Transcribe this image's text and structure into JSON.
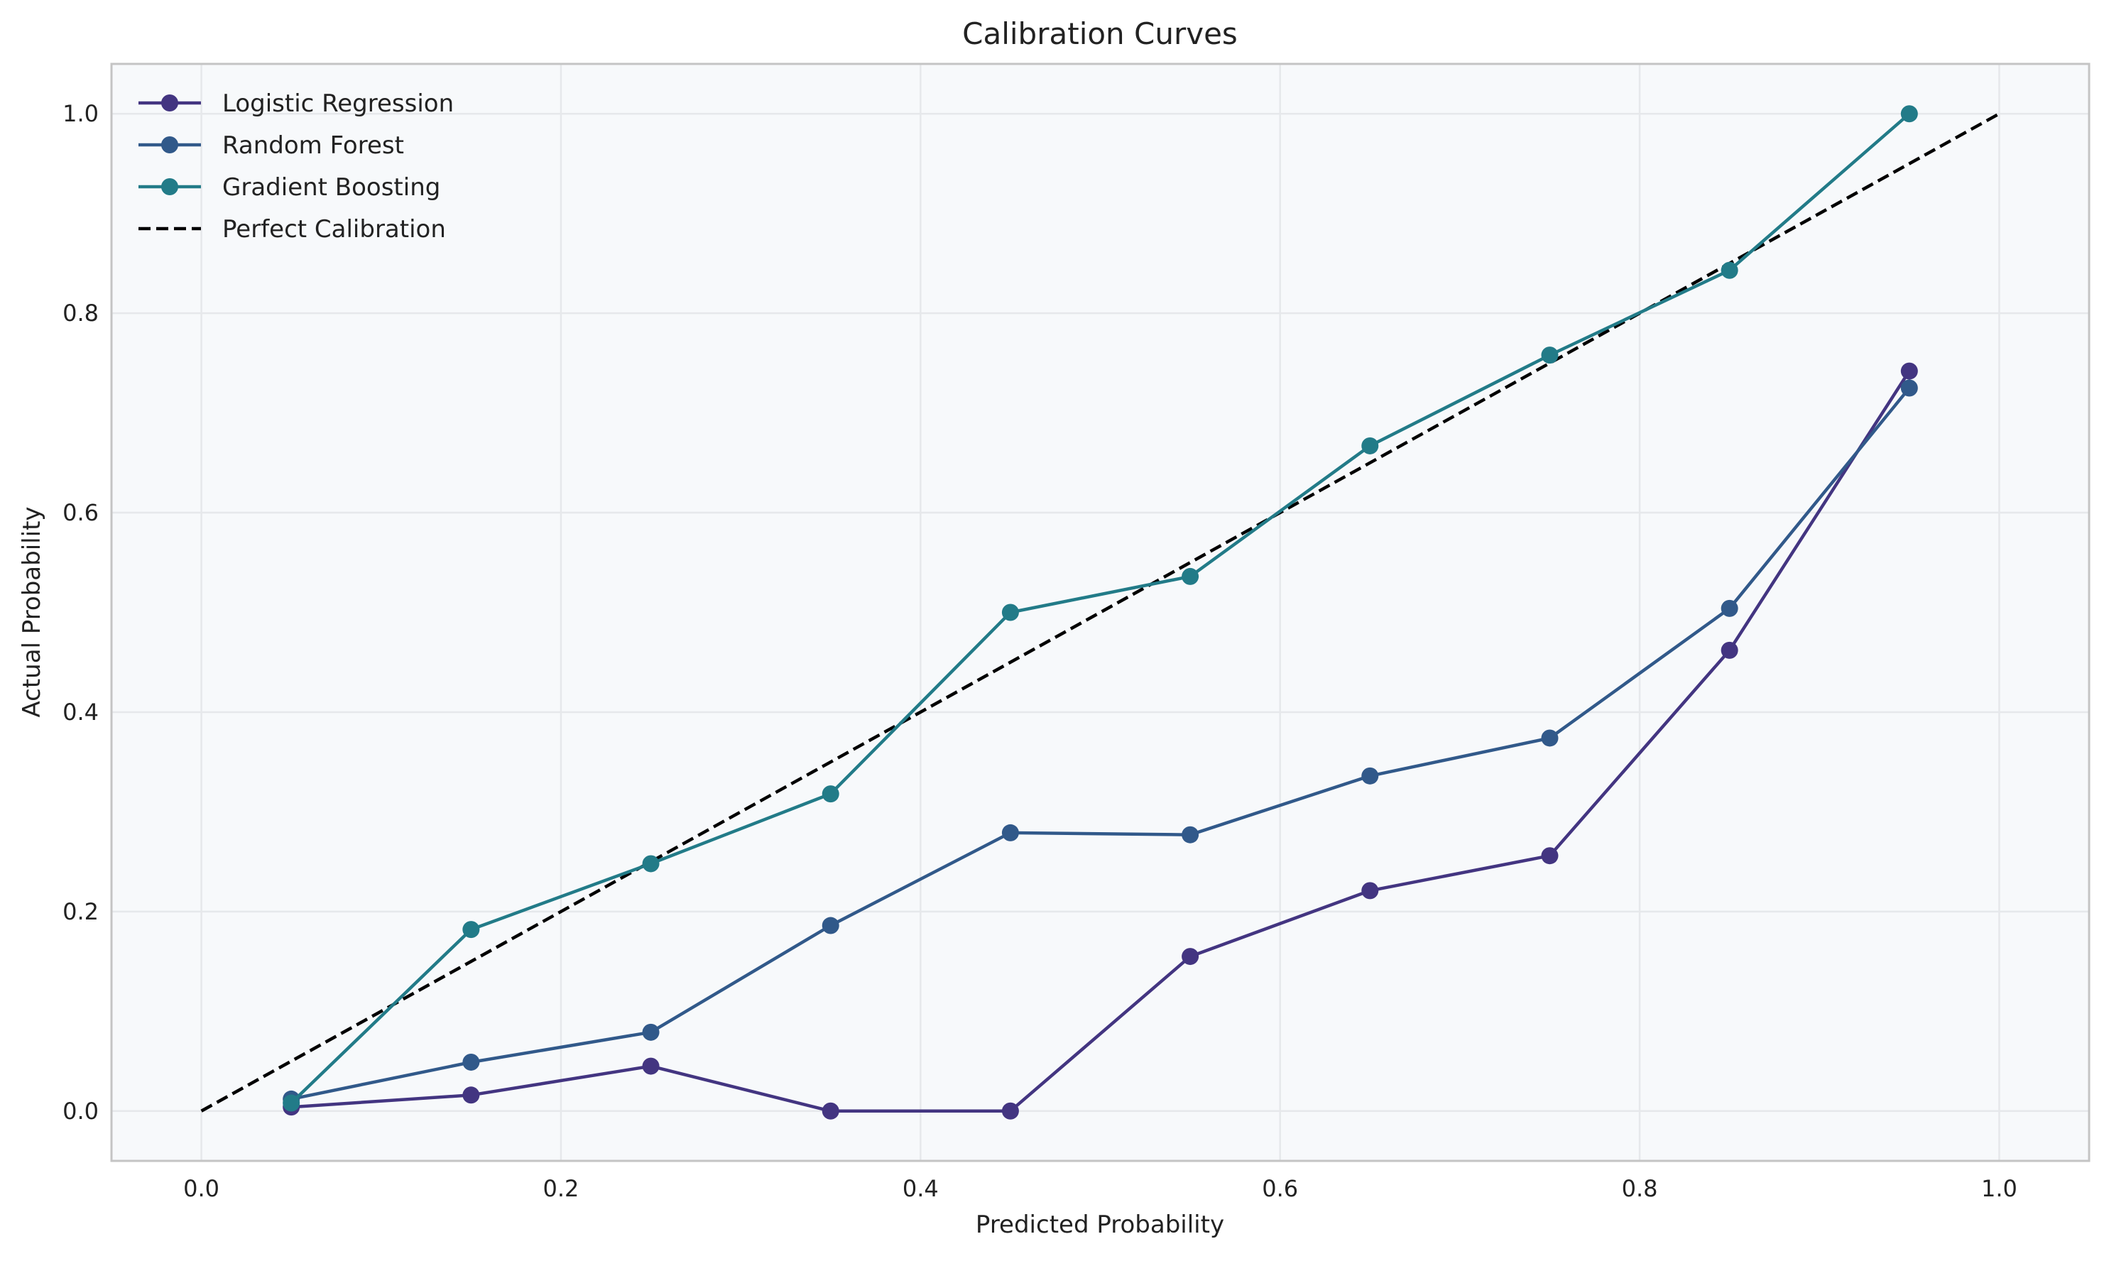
{
  "chart_data": {
    "type": "line",
    "title": "Calibration Curves",
    "xlabel": "Predicted Probability",
    "ylabel": "Actual Probability",
    "xlim": [
      -0.05,
      1.05
    ],
    "ylim": [
      -0.05,
      1.05
    ],
    "xticks": [
      "0.0",
      "0.2",
      "0.4",
      "0.6",
      "0.8",
      "1.0"
    ],
    "yticks": [
      "0.0",
      "0.2",
      "0.4",
      "0.6",
      "0.8",
      "1.0"
    ],
    "grid": true,
    "legend_position": "top-left",
    "x": [
      0.05,
      0.15,
      0.25,
      0.35,
      0.45,
      0.55,
      0.65,
      0.75,
      0.85,
      0.95
    ],
    "series": [
      {
        "name": "Logistic Regression",
        "color": "#433581",
        "marker": "circle",
        "values": [
          0.004,
          0.016,
          0.045,
          0.0,
          0.0,
          0.155,
          0.221,
          0.256,
          0.462,
          0.742
        ]
      },
      {
        "name": "Random Forest",
        "color": "#31598a",
        "marker": "circle",
        "values": [
          0.012,
          0.049,
          0.079,
          0.186,
          0.279,
          0.277,
          0.336,
          0.374,
          0.504,
          0.725
        ]
      },
      {
        "name": "Gradient Boosting",
        "color": "#227b88",
        "marker": "circle",
        "values": [
          0.008,
          0.182,
          0.248,
          0.318,
          0.5,
          0.536,
          0.667,
          0.758,
          0.843,
          1.0
        ]
      }
    ],
    "reference_line": {
      "name": "Perfect Calibration",
      "color": "#000000",
      "style": "dashed",
      "x": [
        0.0,
        1.0
      ],
      "y": [
        0.0,
        1.0
      ]
    }
  }
}
